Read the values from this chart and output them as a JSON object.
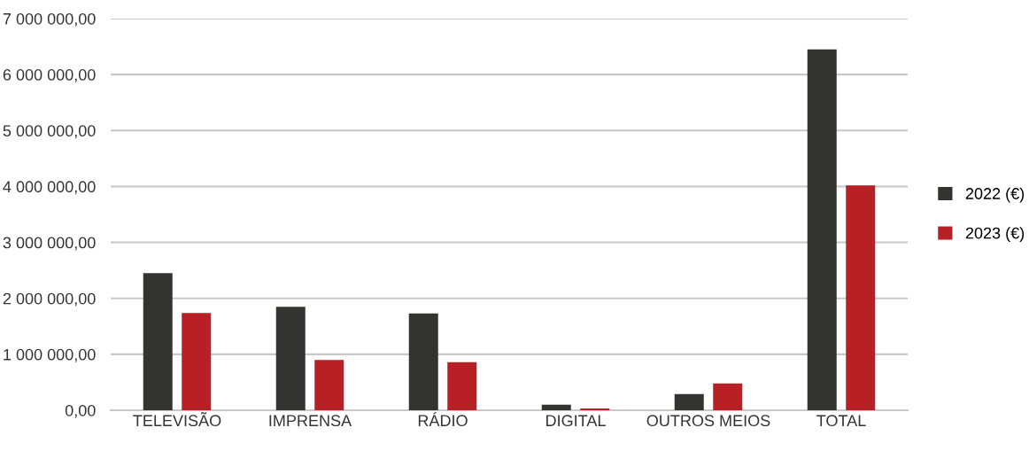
{
  "chart_data": {
    "type": "bar",
    "categories": [
      "TELEVISÃO",
      "IMPRENSA",
      "RÁDIO",
      "DIGITAL",
      "OUTROS MEIOS",
      "TOTAL"
    ],
    "series": [
      {
        "name": "2022 (€)",
        "color": "#333331",
        "values": [
          2450000,
          1850000,
          1730000,
          100000,
          290000,
          6450000
        ]
      },
      {
        "name": "2023 (€)",
        "color": "#b72025",
        "values": [
          1740000,
          900000,
          860000,
          30000,
          480000,
          4020000
        ]
      }
    ],
    "ylim": [
      0,
      7000000
    ],
    "yticks": [
      {
        "value": 0,
        "label": "0,00"
      },
      {
        "value": 1000000,
        "label": "1 000 000,00"
      },
      {
        "value": 2000000,
        "label": "2 000 000,00"
      },
      {
        "value": 3000000,
        "label": "3 000 000,00"
      },
      {
        "value": 4000000,
        "label": "4 000 000,00"
      },
      {
        "value": 5000000,
        "label": "5 000 000,00"
      },
      {
        "value": 6000000,
        "label": "6 000 000,00"
      },
      {
        "value": 7000000,
        "label": "7 000 000,00"
      }
    ],
    "grid": "y",
    "legend": "right"
  }
}
